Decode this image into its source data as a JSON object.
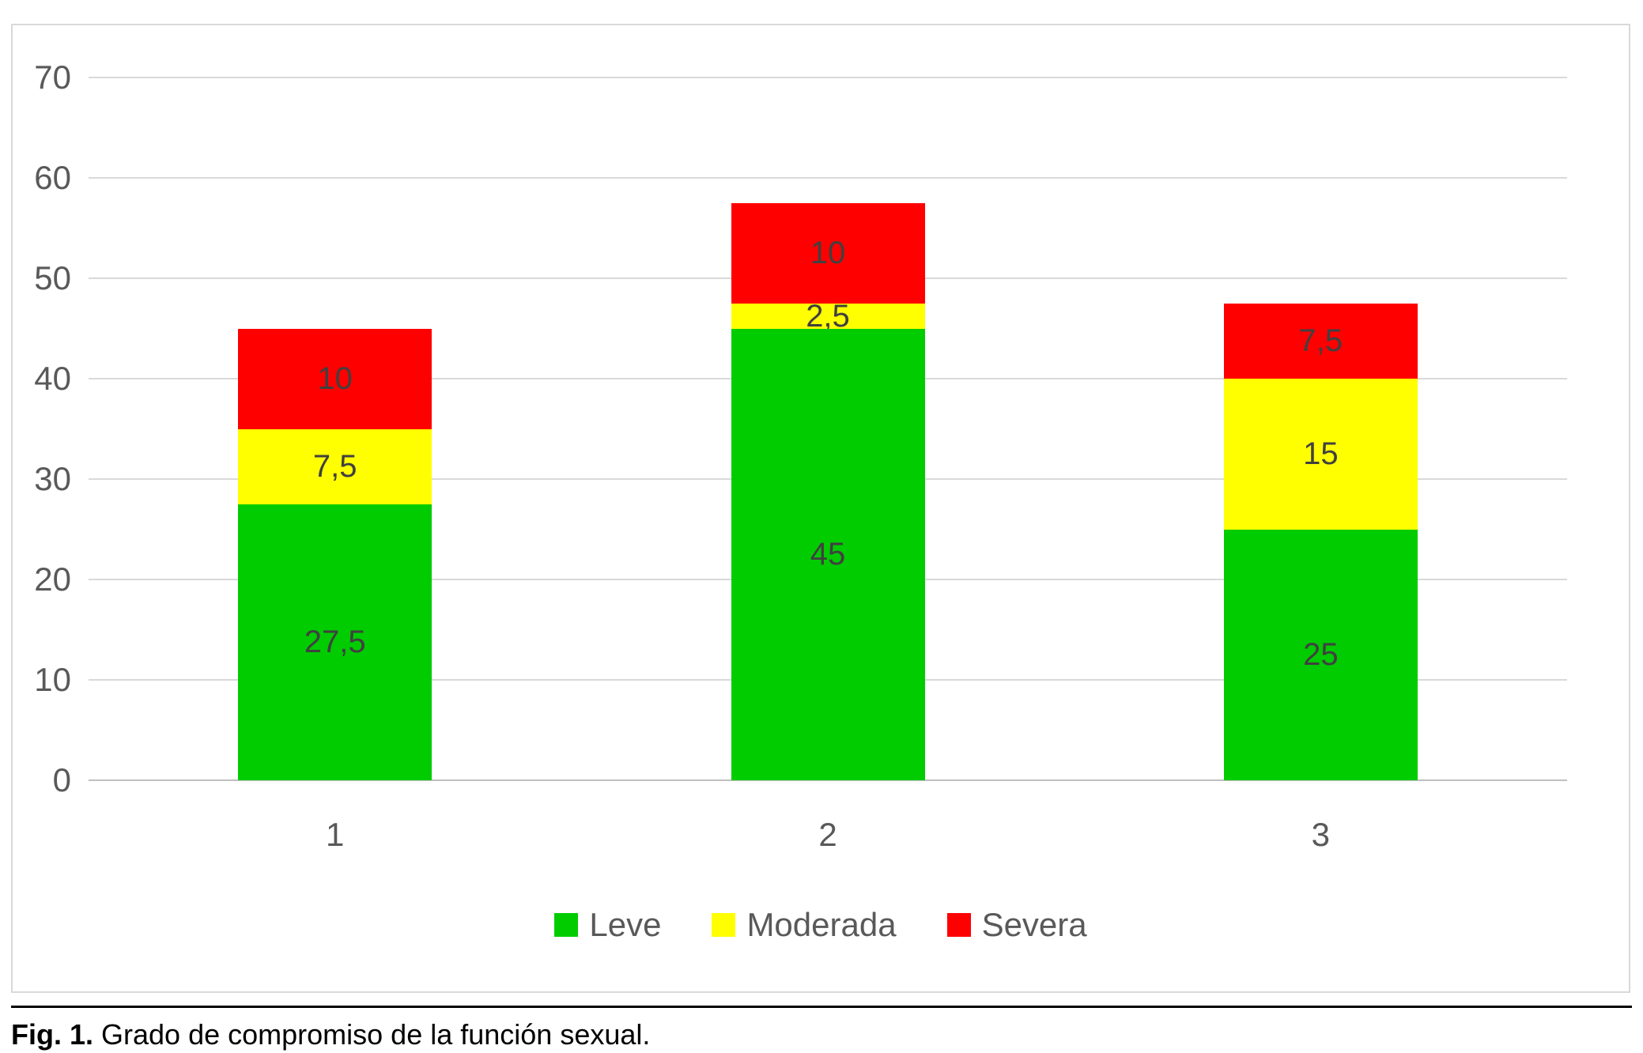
{
  "chart_data": {
    "type": "bar",
    "stacked": true,
    "title": "",
    "xlabel": "",
    "ylabel": "",
    "categories": [
      "1",
      "2",
      "3"
    ],
    "series": [
      {
        "name": "Leve",
        "color": "#00cc00",
        "values": [
          27.5,
          45,
          25
        ],
        "value_labels": [
          "27,5",
          "45",
          "25"
        ]
      },
      {
        "name": "Moderada",
        "color": "#ffff00",
        "values": [
          7.5,
          2.5,
          15
        ],
        "value_labels": [
          "7,5",
          "2,5",
          "15"
        ]
      },
      {
        "name": "Severa",
        "color": "#ff0000",
        "values": [
          10,
          10,
          7.5
        ],
        "value_labels": [
          "10",
          "10",
          "7,5"
        ]
      }
    ],
    "ylim": [
      0,
      70
    ],
    "yticks": [
      0,
      10,
      20,
      30,
      40,
      50,
      60,
      70
    ],
    "grid": true,
    "legend_position": "bottom",
    "colors": {
      "gridline": "#d9d9d9",
      "axis_line": "#bfbfbf",
      "tick_label": "#595959",
      "data_label": "#404040",
      "legend_text": "#595959"
    }
  },
  "caption": {
    "prefix": "Fig. 1.",
    "text": "Grado de compromiso de la función sexual."
  }
}
